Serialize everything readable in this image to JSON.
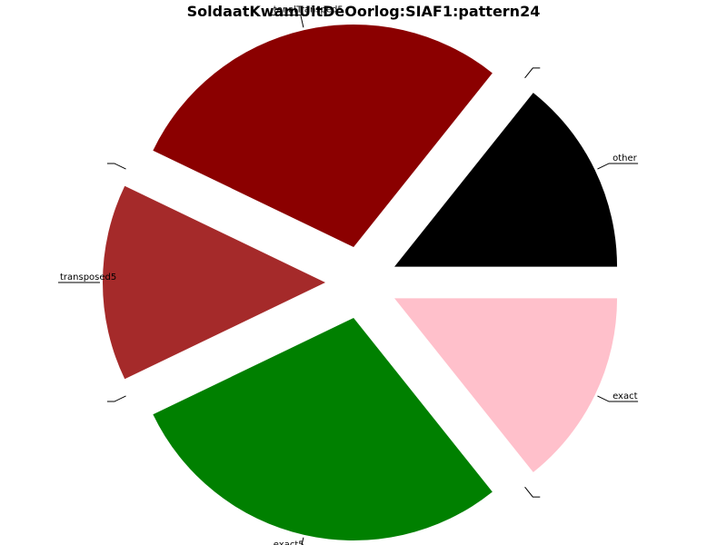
{
  "chart_data": {
    "type": "pie",
    "title": "SoldaatKwamUitDeOorlog:SIAF1:pattern24",
    "slices": [
      {
        "label": "other",
        "value": 1,
        "color": "#000000"
      },
      {
        "label": "",
        "value": 0,
        "color": "#808080"
      },
      {
        "label": "tonalTransped5",
        "value": 2,
        "color": "#8b0000"
      },
      {
        "label": "",
        "value": 0,
        "color": "#808080"
      },
      {
        "label": "transposed5",
        "value": 1,
        "color": "#a52a2a"
      },
      {
        "label": "",
        "value": 0,
        "color": "#808080"
      },
      {
        "label": "exact5",
        "value": 2,
        "color": "#008000"
      },
      {
        "label": "",
        "value": 0,
        "color": "#808080"
      },
      {
        "label": "exact",
        "value": 1,
        "color": "#ffc0cb"
      }
    ],
    "start_angle_deg": 0,
    "direction": "counterclockwise",
    "exploded": true,
    "legend": "none"
  }
}
